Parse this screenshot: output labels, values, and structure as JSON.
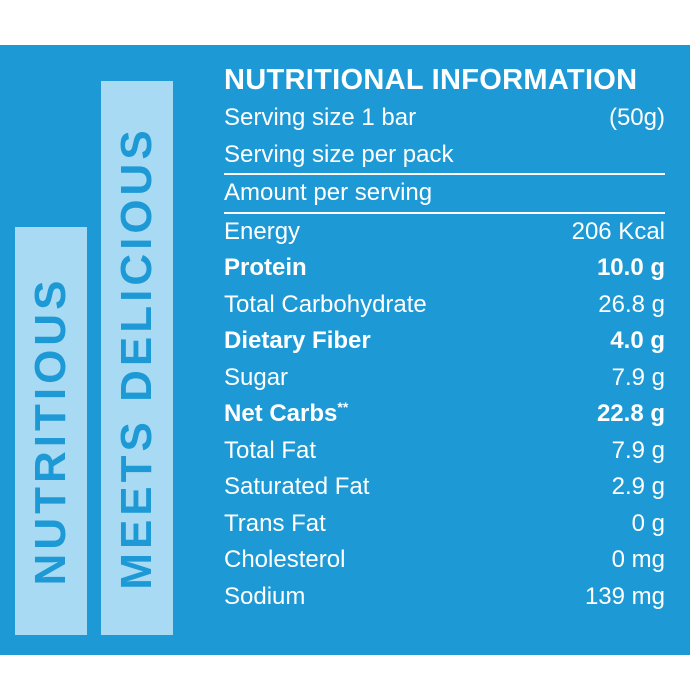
{
  "side_labels": {
    "left": "NUTRITIOUS",
    "right": "MEETS DELICIOUS"
  },
  "nutrition": {
    "title": "NUTRITIONAL INFORMATION",
    "serving_size_label": "Serving size 1 bar",
    "serving_size_value": "(50g)",
    "serving_per_pack_label": "Serving size per pack",
    "amount_per_serving": "Amount per serving",
    "rows": [
      {
        "label": "Energy",
        "value": "206 Kcal",
        "bold": false
      },
      {
        "label": "Protein",
        "value": "10.0 g",
        "bold": true
      },
      {
        "label": "Total Carbohydrate",
        "value": "26.8 g",
        "bold": false
      },
      {
        "label": "Dietary Fiber",
        "value": "4.0 g",
        "bold": true
      },
      {
        "label": "Sugar",
        "value": "7.9 g",
        "bold": false
      },
      {
        "label": "Net Carbs",
        "note": "**",
        "value": "22.8 g",
        "bold": true
      },
      {
        "label": "Total Fat",
        "value": "7.9 g",
        "bold": false
      },
      {
        "label": "Saturated Fat",
        "value": "2.9 g",
        "bold": false
      },
      {
        "label": "Trans Fat",
        "value": "0 g",
        "bold": false
      },
      {
        "label": "Cholesterol",
        "value": "0 mg",
        "bold": false
      },
      {
        "label": "Sodium",
        "value": "139 mg",
        "bold": false
      }
    ]
  },
  "colors": {
    "panel_blue": "#1d9ad6",
    "bar_light_blue": "#a9daf3",
    "text": "#ffffff"
  }
}
